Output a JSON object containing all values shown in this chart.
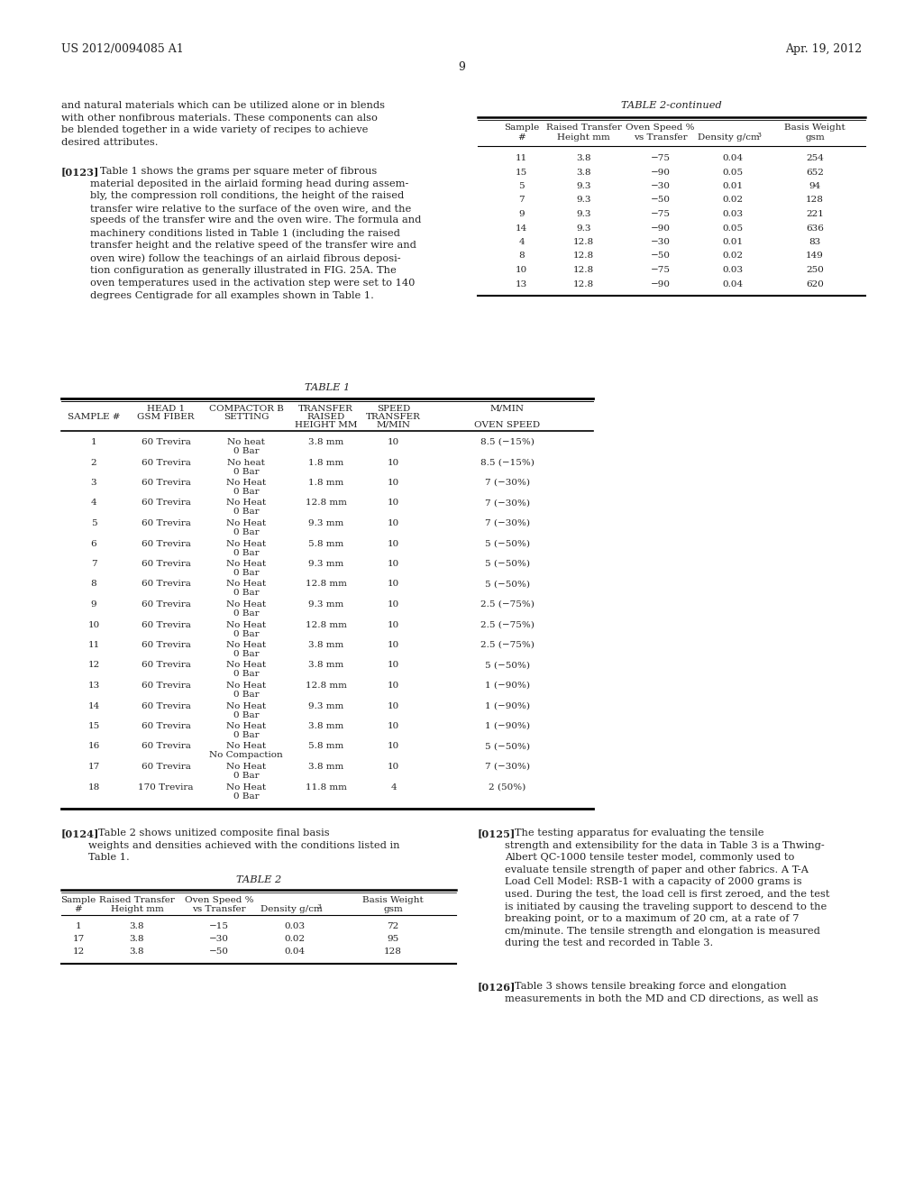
{
  "page_number": "9",
  "header_left": "US 2012/0094085 A1",
  "header_right": "Apr. 19, 2012",
  "left_para1": "and natural materials which can be utilized alone or in blends\nwith other nonfibrous materials. These components can also\nbe blended together in a wide variety of recipes to achieve\ndesired attributes.",
  "left_para2_bold": "[0123]",
  "left_para2_rest": "   Table 1 shows the grams per square meter of fibrous\nmaterial deposited in the airlaid forming head during assem-\nbly, the compression roll conditions, the height of the raised\ntransfer wire relative to the surface of the oven wire, and the\nspeeds of the transfer wire and the oven wire. The formula and\nmachinery conditions listed in Table 1 (including the raised\ntransfer height and the relative speed of the transfer wire and\noven wire) follow the teachings of an airlaid fibrous deposi-\ntion configuration as generally illustrated in FIG. 25A. The\noven temperatures used in the activation step were set to 140\ndegrees Centigrade for all examples shown in Table 1.",
  "table2c_title": "TABLE 2-continued",
  "table2c_data": [
    [
      "11",
      "3.8",
      "−75",
      "0.04",
      "254"
    ],
    [
      "15",
      "3.8",
      "−90",
      "0.05",
      "652"
    ],
    [
      "5",
      "9.3",
      "−30",
      "0.01",
      "94"
    ],
    [
      "7",
      "9.3",
      "−50",
      "0.02",
      "128"
    ],
    [
      "9",
      "9.3",
      "−75",
      "0.03",
      "221"
    ],
    [
      "14",
      "9.3",
      "−90",
      "0.05",
      "636"
    ],
    [
      "4",
      "12.8",
      "−30",
      "0.01",
      "83"
    ],
    [
      "8",
      "12.8",
      "−50",
      "0.02",
      "149"
    ],
    [
      "10",
      "12.8",
      "−75",
      "0.03",
      "250"
    ],
    [
      "13",
      "12.8",
      "−90",
      "0.04",
      "620"
    ]
  ],
  "table1_title": "TABLE 1",
  "table1_data": [
    [
      "1",
      "60 Trevira",
      "No heat\n0 Bar",
      "3.8 mm",
      "10",
      "8.5 (−15%)"
    ],
    [
      "2",
      "60 Trevira",
      "No heat\n0 Bar",
      "1.8 mm",
      "10",
      "8.5 (−15%)"
    ],
    [
      "3",
      "60 Trevira",
      "No Heat\n0 Bar",
      "1.8 mm",
      "10",
      "7 (−30%)"
    ],
    [
      "4",
      "60 Trevira",
      "No Heat\n0 Bar",
      "12.8 mm",
      "10",
      "7 (−30%)"
    ],
    [
      "5",
      "60 Trevira",
      "No Heat\n0 Bar",
      "9.3 mm",
      "10",
      "7 (−30%)"
    ],
    [
      "6",
      "60 Trevira",
      "No Heat\n0 Bar",
      "5.8 mm",
      "10",
      "5 (−50%)"
    ],
    [
      "7",
      "60 Trevira",
      "No Heat\n0 Bar",
      "9.3 mm",
      "10",
      "5 (−50%)"
    ],
    [
      "8",
      "60 Trevira",
      "No Heat\n0 Bar",
      "12.8 mm",
      "10",
      "5 (−50%)"
    ],
    [
      "9",
      "60 Trevira",
      "No Heat\n0 Bar",
      "9.3 mm",
      "10",
      "2.5 (−75%)"
    ],
    [
      "10",
      "60 Trevira",
      "No Heat\n0 Bar",
      "12.8 mm",
      "10",
      "2.5 (−75%)"
    ],
    [
      "11",
      "60 Trevira",
      "No Heat\n0 Bar",
      "3.8 mm",
      "10",
      "2.5 (−75%)"
    ],
    [
      "12",
      "60 Trevira",
      "No Heat\n0 Bar",
      "3.8 mm",
      "10",
      "5 (−50%)"
    ],
    [
      "13",
      "60 Trevira",
      "No Heat\n0 Bar",
      "12.8 mm",
      "10",
      "1 (−90%)"
    ],
    [
      "14",
      "60 Trevira",
      "No Heat\n0 Bar",
      "9.3 mm",
      "10",
      "1 (−90%)"
    ],
    [
      "15",
      "60 Trevira",
      "No Heat\n0 Bar",
      "3.8 mm",
      "10",
      "1 (−90%)"
    ],
    [
      "16",
      "60 Trevira",
      "No Heat\nNo Compaction",
      "5.8 mm",
      "10",
      "5 (−50%)"
    ],
    [
      "17",
      "60 Trevira",
      "No Heat\n0 Bar",
      "3.8 mm",
      "10",
      "7 (−30%)"
    ],
    [
      "18",
      "170 Trevira",
      "No Heat\n0 Bar",
      "11.8 mm",
      "4",
      "2 (50%)"
    ]
  ],
  "para_0124_bold": "[0124]",
  "para_0124_rest": "   Table 2 shows unitized composite final basis\nweights and densities achieved with the conditions listed in\nTable 1.",
  "table2_title": "TABLE 2",
  "table2_data": [
    [
      "1",
      "3.8",
      "−15",
      "0.03",
      "72"
    ],
    [
      "17",
      "3.8",
      "−30",
      "0.02",
      "95"
    ],
    [
      "12",
      "3.8",
      "−50",
      "0.04",
      "128"
    ]
  ],
  "para_0125_bold": "[0125]",
  "para_0125_rest": "   The testing apparatus for evaluating the tensile\nstrength and extensibility for the data in Table 3 is a Thwing-\nAlbert QC-1000 tensile tester model, commonly used to\nevaluate tensile strength of paper and other fabrics. A T-A\nLoad Cell Model: RSB-1 with a capacity of 2000 grams is\nused. During the test, the load cell is first zeroed, and the test\nis initiated by causing the traveling support to descend to the\nbreaking point, or to a maximum of 20 cm, at a rate of 7\ncm/minute. The tensile strength and elongation is measured\nduring the test and recorded in Table 3.",
  "para_0126_bold": "[0126]",
  "para_0126_rest": "   Table 3 shows tensile breaking force and elongation\nmeasurements in both the MD and CD directions, as well as"
}
